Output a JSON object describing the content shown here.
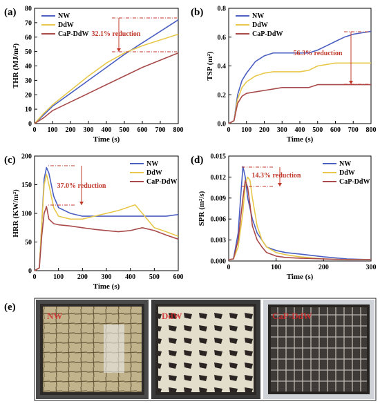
{
  "chart_data": [
    {
      "panel": "(a)",
      "type": "line",
      "xlabel": "Time (s)",
      "ylabel": "THR (MJ/m²)",
      "xlim": [
        0,
        800
      ],
      "ylim": [
        0,
        80
      ],
      "xticks": [
        "0",
        "100",
        "200",
        "300",
        "400",
        "500",
        "600",
        "700",
        "800"
      ],
      "yticks": [
        "0",
        "10",
        "20",
        "30",
        "40",
        "50",
        "60",
        "70",
        "80"
      ],
      "legend_pos": "top-left",
      "annotation": "32.1% reduction",
      "series": [
        {
          "name": "NW",
          "color": "#4a5fc1",
          "x": [
            0,
            50,
            100,
            200,
            300,
            400,
            500,
            600,
            700,
            800
          ],
          "y": [
            0,
            6,
            12,
            21,
            30,
            39,
            48,
            56,
            64,
            72
          ]
        },
        {
          "name": "DdW",
          "color": "#e8c84a",
          "x": [
            0,
            50,
            100,
            200,
            300,
            400,
            500,
            600,
            700,
            800
          ],
          "y": [
            0,
            7,
            13,
            23,
            33,
            42,
            49,
            54,
            58,
            62
          ]
        },
        {
          "name": "CaP-DdW",
          "color": "#a94a4a",
          "x": [
            0,
            50,
            100,
            200,
            300,
            400,
            500,
            600,
            700,
            800
          ],
          "y": [
            0,
            4,
            9,
            15,
            21,
            27,
            33,
            39,
            44,
            49
          ]
        }
      ]
    },
    {
      "panel": "(b)",
      "type": "line",
      "xlabel": "Time (s)",
      "ylabel": "TSP (m²)",
      "xlim": [
        0,
        800
      ],
      "ylim": [
        0,
        0.8
      ],
      "xticks": [
        "0",
        "100",
        "200",
        "300",
        "400",
        "500",
        "600",
        "700",
        "800"
      ],
      "yticks": [
        "0.0",
        "0.2",
        "0.4",
        "0.6",
        "0.8"
      ],
      "legend_pos": "top-left",
      "annotation": "56.3% reduction",
      "series": [
        {
          "name": "NW",
          "color": "#4a5fc1",
          "x": [
            0,
            30,
            50,
            75,
            100,
            150,
            200,
            250,
            300,
            350,
            400,
            450,
            500,
            550,
            600,
            650,
            700,
            750,
            800
          ],
          "y": [
            0,
            0.02,
            0.2,
            0.3,
            0.35,
            0.43,
            0.47,
            0.49,
            0.49,
            0.49,
            0.49,
            0.49,
            0.51,
            0.54,
            0.57,
            0.6,
            0.62,
            0.63,
            0.64
          ]
        },
        {
          "name": "DdW",
          "color": "#e8c84a",
          "x": [
            0,
            30,
            50,
            75,
            100,
            150,
            200,
            250,
            300,
            350,
            400,
            450,
            500,
            550,
            600,
            650,
            700,
            750,
            800
          ],
          "y": [
            0,
            0.02,
            0.17,
            0.25,
            0.29,
            0.33,
            0.35,
            0.36,
            0.36,
            0.36,
            0.36,
            0.37,
            0.4,
            0.41,
            0.42,
            0.42,
            0.42,
            0.42,
            0.42
          ]
        },
        {
          "name": "CaP-DdW",
          "color": "#a94a4a",
          "x": [
            0,
            30,
            50,
            75,
            100,
            150,
            200,
            250,
            300,
            350,
            400,
            450,
            500,
            550,
            600,
            650,
            700,
            750,
            800
          ],
          "y": [
            0,
            0.02,
            0.14,
            0.19,
            0.21,
            0.22,
            0.23,
            0.24,
            0.25,
            0.25,
            0.25,
            0.25,
            0.27,
            0.27,
            0.27,
            0.27,
            0.27,
            0.27,
            0.27
          ]
        }
      ]
    },
    {
      "panel": "(c)",
      "type": "line",
      "xlabel": "Time (s)",
      "ylabel": "HRR (KW/m²)",
      "xlim": [
        0,
        600
      ],
      "ylim": [
        0,
        200
      ],
      "xticks": [
        "0",
        "100",
        "200",
        "300",
        "400",
        "500",
        "600"
      ],
      "yticks": [
        "0",
        "50",
        "100",
        "150",
        "200"
      ],
      "legend_pos": "top-right",
      "annotation": "37.0% reduction",
      "series": [
        {
          "name": "NW",
          "color": "#4a5fc1",
          "x": [
            0,
            20,
            30,
            40,
            50,
            60,
            80,
            100,
            150,
            200,
            250,
            300,
            350,
            400,
            450,
            500,
            550,
            600
          ],
          "y": [
            0,
            5,
            80,
            160,
            180,
            170,
            130,
            110,
            100,
            95,
            95,
            95,
            95,
            95,
            95,
            95,
            95,
            98
          ]
        },
        {
          "name": "DdW",
          "color": "#e8c84a",
          "x": [
            0,
            20,
            30,
            40,
            50,
            60,
            80,
            100,
            150,
            200,
            250,
            300,
            350,
            400,
            420,
            450,
            500,
            550,
            600
          ],
          "y": [
            0,
            5,
            80,
            150,
            168,
            150,
            110,
            95,
            90,
            90,
            95,
            100,
            105,
            112,
            115,
            100,
            75,
            68,
            60
          ]
        },
        {
          "name": "CaP-DdW",
          "color": "#a94a4a",
          "x": [
            0,
            20,
            30,
            40,
            50,
            60,
            80,
            100,
            150,
            200,
            250,
            300,
            350,
            400,
            450,
            500,
            550,
            600
          ],
          "y": [
            0,
            5,
            60,
            100,
            112,
            90,
            82,
            80,
            78,
            75,
            72,
            70,
            68,
            70,
            75,
            70,
            62,
            55
          ]
        }
      ]
    },
    {
      "panel": "(d)",
      "type": "line",
      "xlabel": "Time (s)",
      "ylabel": "SPR (m²/s)",
      "xlim": [
        0,
        300
      ],
      "ylim": [
        0,
        0.015
      ],
      "xticks": [
        "0",
        "100",
        "200",
        "300"
      ],
      "yticks": [
        "0.000",
        "0.003",
        "0.006",
        "0.009",
        "0.012",
        "0.015"
      ],
      "legend_pos": "top-right",
      "annotation": "14.3% reduction",
      "series": [
        {
          "name": "NW",
          "color": "#4a5fc1",
          "x": [
            0,
            10,
            20,
            25,
            30,
            35,
            40,
            50,
            60,
            70,
            80,
            100,
            120,
            150,
            200,
            250,
            300
          ],
          "y": [
            0.0002,
            0.0003,
            0.004,
            0.009,
            0.0135,
            0.012,
            0.009,
            0.006,
            0.004,
            0.003,
            0.002,
            0.0015,
            0.0012,
            0.001,
            0.0006,
            0.0003,
            0.0002
          ]
        },
        {
          "name": "DdW",
          "color": "#e8c84a",
          "x": [
            0,
            10,
            20,
            30,
            35,
            40,
            45,
            50,
            60,
            70,
            80,
            100,
            120,
            150,
            200,
            250,
            300
          ],
          "y": [
            0.0002,
            0.0003,
            0.002,
            0.007,
            0.011,
            0.012,
            0.0115,
            0.009,
            0.005,
            0.003,
            0.002,
            0.0012,
            0.0009,
            0.0006,
            0.0003,
            0.0002,
            0.0002
          ]
        },
        {
          "name": "CaP-DdW",
          "color": "#a94a4a",
          "x": [
            0,
            10,
            20,
            30,
            35,
            40,
            45,
            50,
            60,
            70,
            80,
            100,
            120,
            150,
            200,
            250,
            300
          ],
          "y": [
            0.0002,
            0.0003,
            0.003,
            0.009,
            0.0115,
            0.0105,
            0.008,
            0.005,
            0.003,
            0.002,
            0.0012,
            0.0007,
            0.0005,
            0.0004,
            0.0003,
            0.0002,
            0.0002
          ]
        }
      ]
    }
  ],
  "panel_e": {
    "label": "(e)",
    "photos": [
      "NW",
      "DdW",
      "CaP-DdW"
    ]
  }
}
